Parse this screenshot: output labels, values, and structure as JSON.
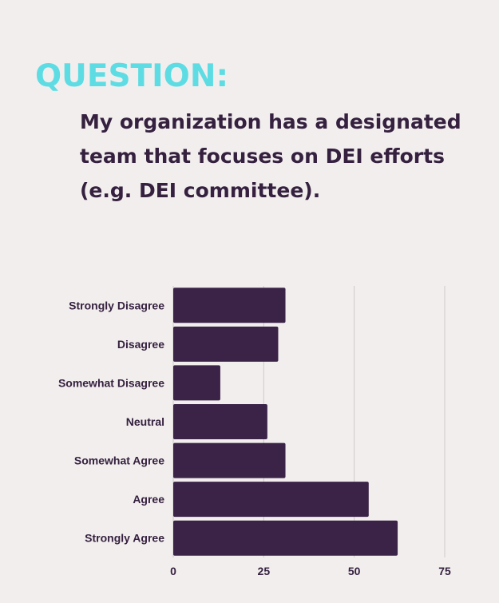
{
  "heading": "QUESTION:",
  "question": "My organization has a designated team that focuses on DEI efforts (e.g. DEI committee).",
  "colors": {
    "background": "#f2eeee",
    "heading": "#5ddde3",
    "text": "#35213f",
    "bar": "#3a2347",
    "grid": "#cfcaca"
  },
  "chart_data": {
    "type": "bar",
    "orientation": "horizontal",
    "categories": [
      "Strongly Disagree",
      "Disagree",
      "Somewhat Disagree",
      "Neutral ",
      "Somewhat Agree",
      "Agree",
      "Strongly Agree"
    ],
    "values": [
      31,
      29,
      13,
      26,
      31,
      54,
      62
    ],
    "xlim": [
      0,
      75
    ],
    "xticks": [
      "0",
      "25",
      "50",
      "75"
    ],
    "grid": true,
    "title": "",
    "xlabel": "",
    "ylabel": ""
  }
}
